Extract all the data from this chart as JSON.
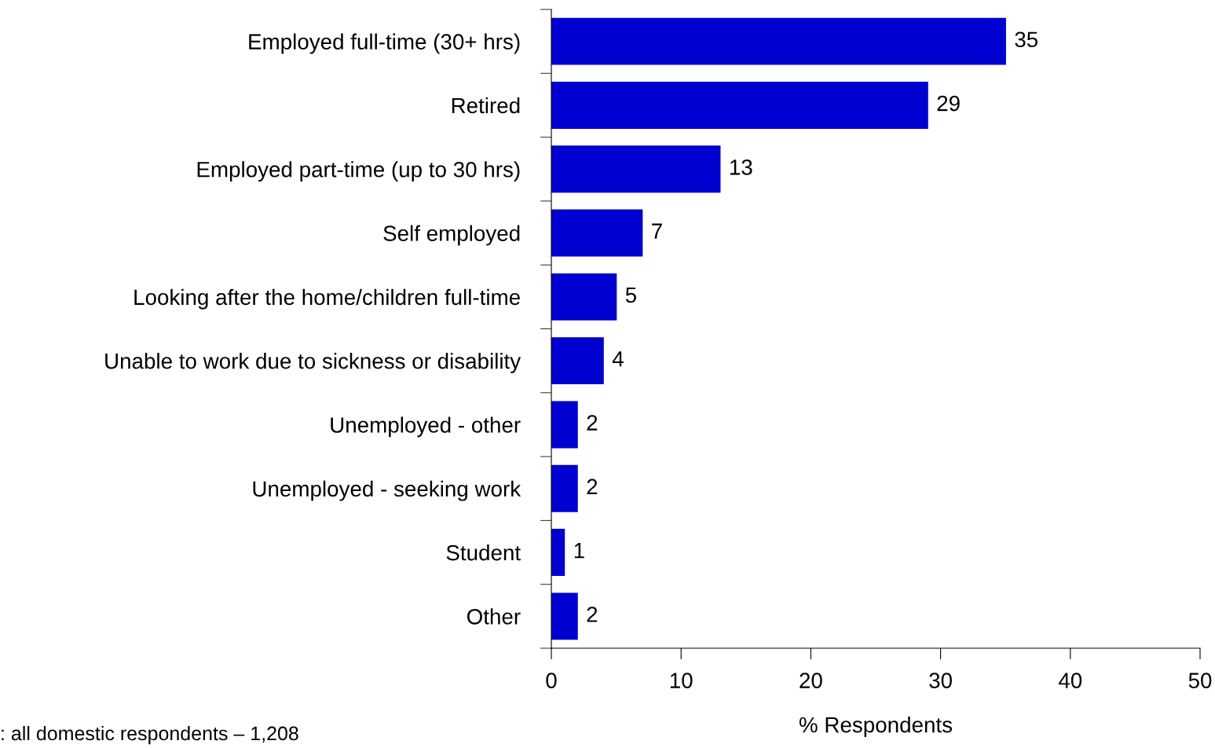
{
  "chart_data": {
    "type": "bar",
    "orientation": "horizontal",
    "categories": [
      "Employed full-time (30+ hrs)",
      "Retired",
      "Employed part-time (up to 30 hrs)",
      "Self employed",
      "Looking after the home/children full-time",
      "Unable to work due to sickness or disability",
      "Unemployed - other",
      "Unemployed - seeking work",
      "Student",
      "Other"
    ],
    "values": [
      35,
      29,
      13,
      7,
      5,
      4,
      2,
      2,
      1,
      2
    ],
    "color": "#0000d0",
    "xlabel": "% Respondents",
    "xlim": [
      0,
      50
    ],
    "xticks": [
      0,
      10,
      20,
      30,
      40,
      50
    ],
    "data_labels": true,
    "grid": false,
    "annotations": [
      ": all domestic respondents – 1,208"
    ]
  }
}
